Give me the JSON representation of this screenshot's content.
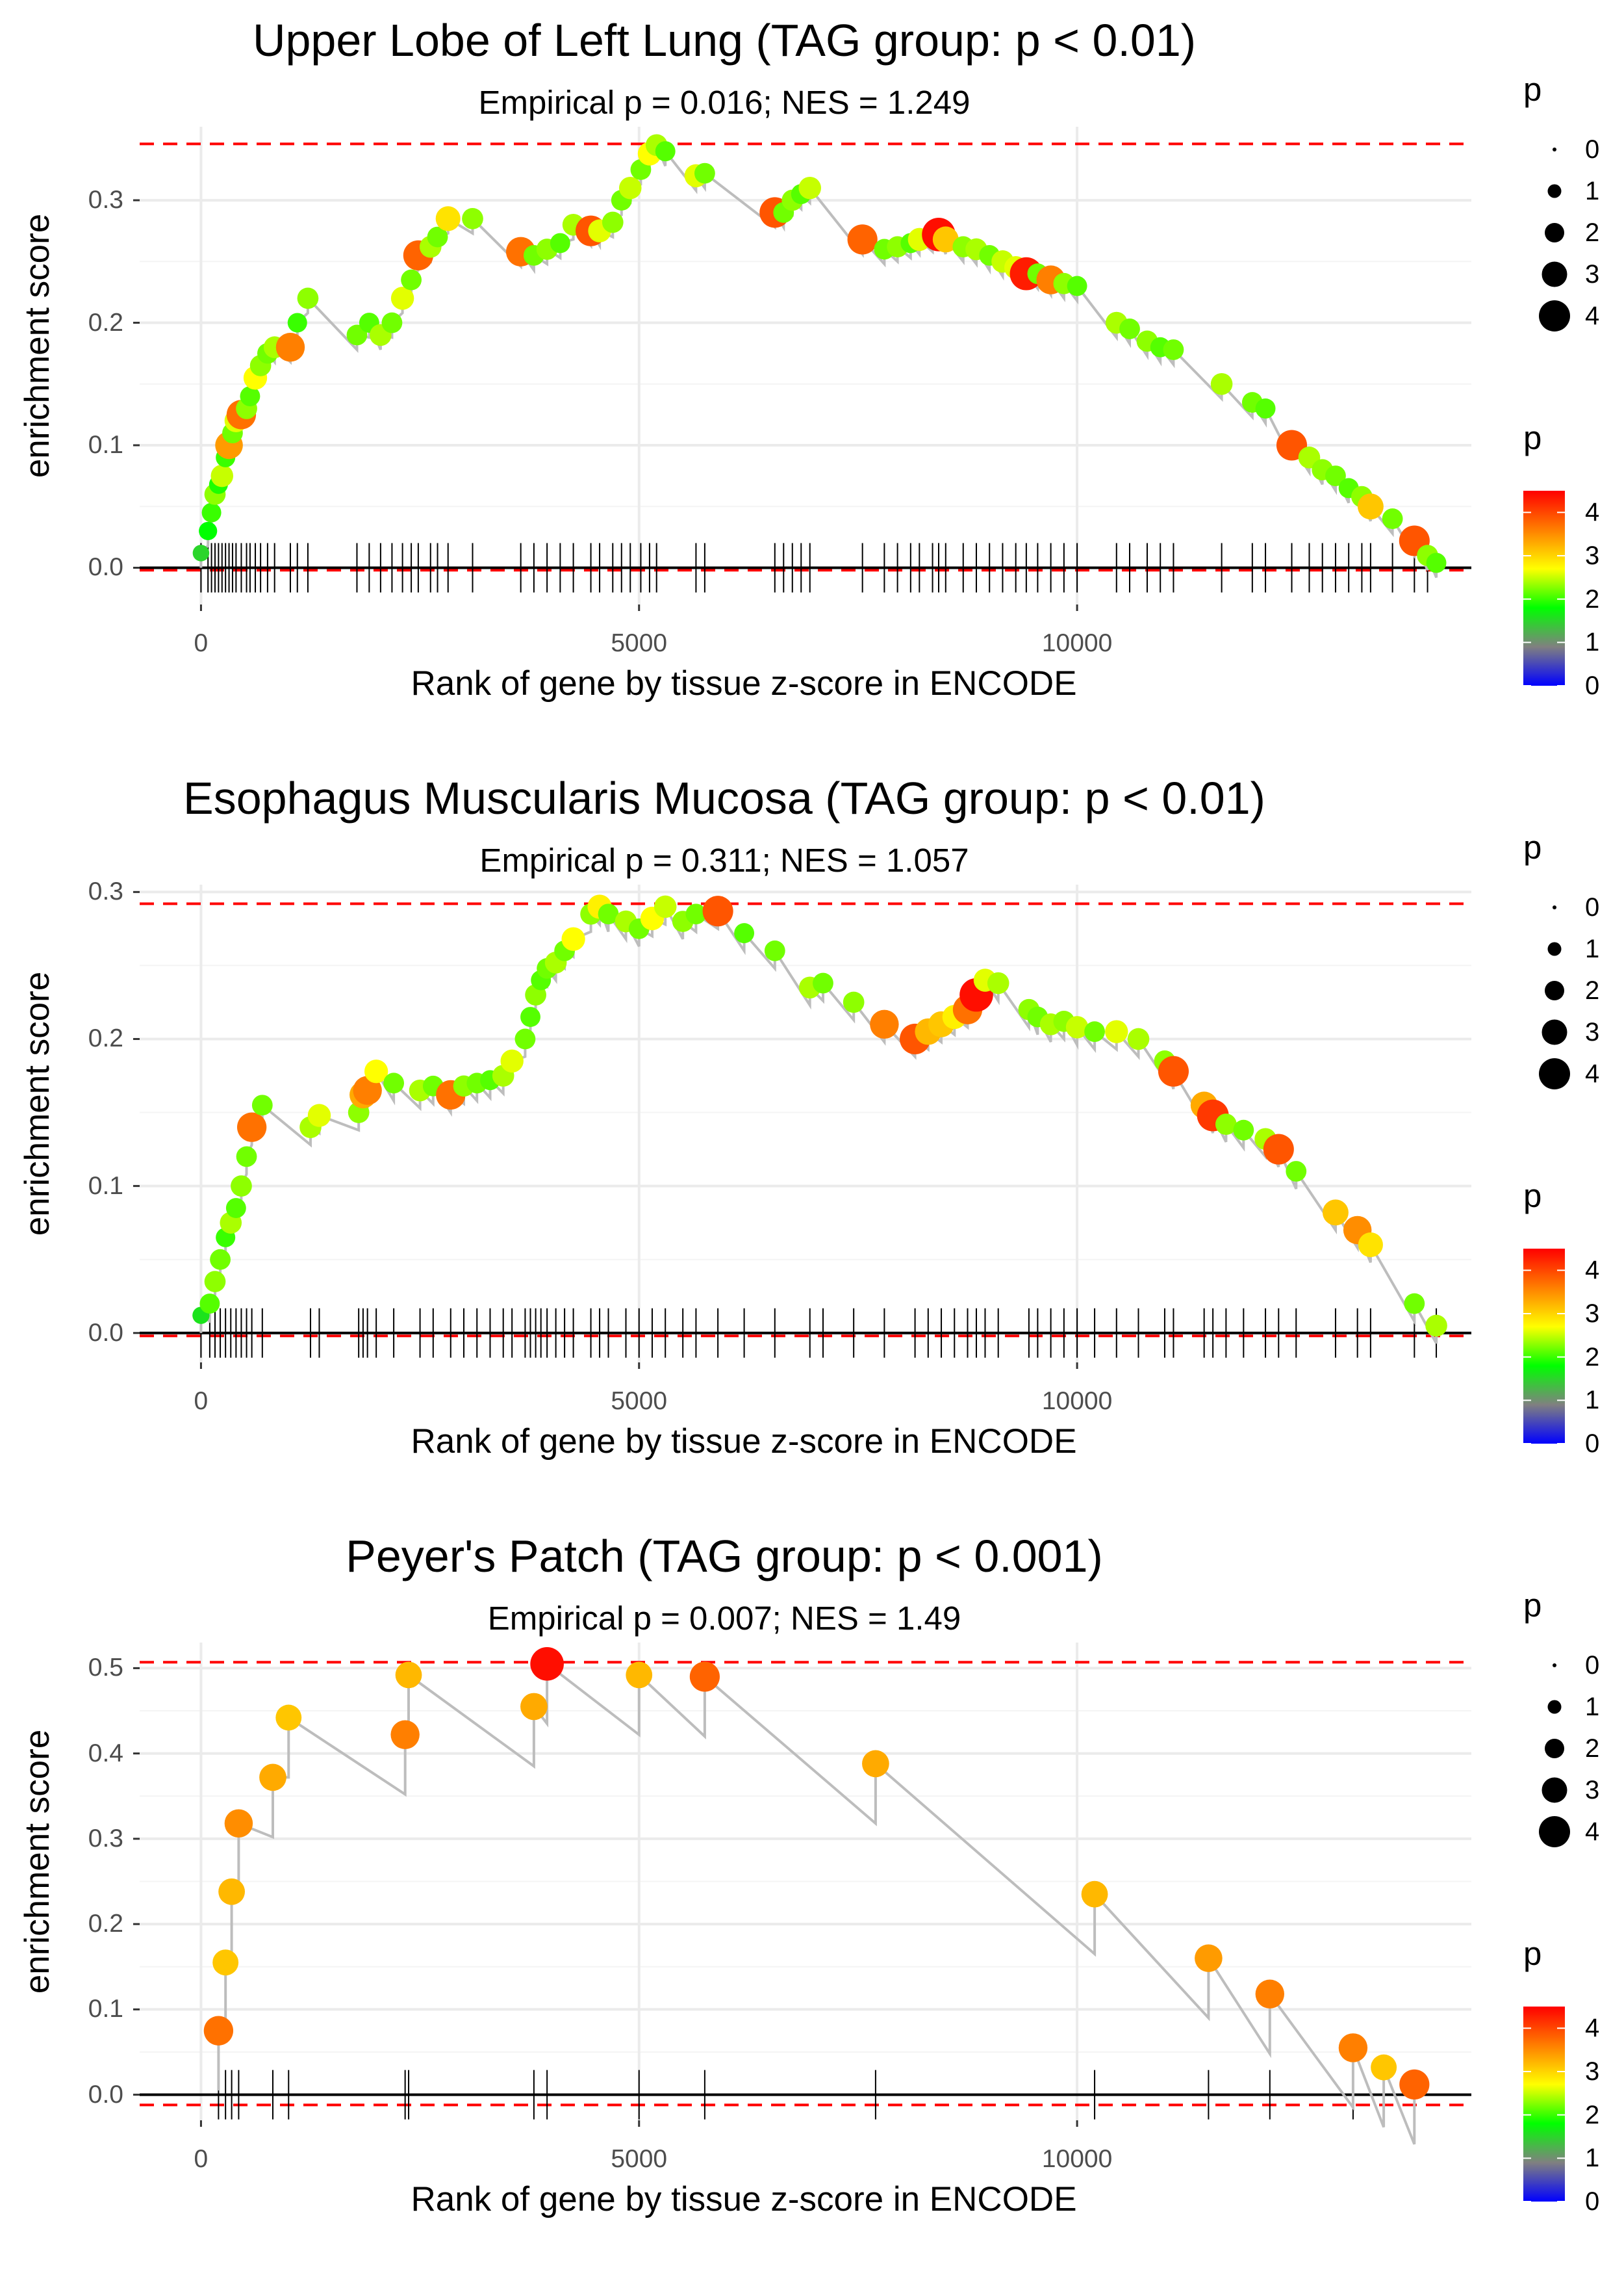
{
  "chart_data": [
    {
      "type": "scatter",
      "title": "Upper Lobe of Left Lung (TAG group: p < 0.01)",
      "subtitle": "Empirical p = 0.016; NES = 1.249",
      "xlabel": "Rank of gene by tissue z-score in ENCODE",
      "ylabel": "enrichment score",
      "xlim": [
        -700,
        14500
      ],
      "ylim": [
        -0.03,
        0.36
      ],
      "x_ticks": [
        {
          "value": 0,
          "label": "0"
        },
        {
          "value": 5000,
          "label": "5000"
        },
        {
          "value": 10000,
          "label": "10000"
        }
      ],
      "y_ticks": [
        {
          "value": 0.0,
          "label": "0.0"
        },
        {
          "value": 0.1,
          "label": "0.1"
        },
        {
          "value": 0.2,
          "label": "0.2"
        },
        {
          "value": 0.3,
          "label": "0.3"
        }
      ],
      "max_line": 0.346,
      "min_line": -0.002,
      "points": [
        [
          0,
          0.012,
          1.5
        ],
        [
          80,
          0.03,
          1.8
        ],
        [
          120,
          0.045,
          2
        ],
        [
          160,
          0.06,
          2.3
        ],
        [
          200,
          0.068,
          1.9
        ],
        [
          240,
          0.075,
          2.5
        ],
        [
          280,
          0.09,
          2
        ],
        [
          320,
          0.1,
          3.4
        ],
        [
          360,
          0.11,
          2.2
        ],
        [
          400,
          0.12,
          2.6
        ],
        [
          460,
          0.125,
          3.7
        ],
        [
          520,
          0.13,
          2.3
        ],
        [
          560,
          0.14,
          2.1
        ],
        [
          620,
          0.155,
          2.7
        ],
        [
          680,
          0.165,
          2.3
        ],
        [
          760,
          0.175,
          2.2
        ],
        [
          840,
          0.18,
          2.4
        ],
        [
          1020,
          0.18,
          3.6
        ],
        [
          1100,
          0.2,
          2
        ],
        [
          1220,
          0.22,
          2.3
        ],
        [
          1780,
          0.19,
          2.2
        ],
        [
          1920,
          0.2,
          2.1
        ],
        [
          2050,
          0.19,
          2.4
        ],
        [
          2180,
          0.2,
          2.2
        ],
        [
          2300,
          0.22,
          2.6
        ],
        [
          2400,
          0.235,
          2.2
        ],
        [
          2480,
          0.255,
          3.8
        ],
        [
          2620,
          0.262,
          2.4
        ],
        [
          2700,
          0.27,
          2.2
        ],
        [
          2820,
          0.285,
          2.9
        ],
        [
          3100,
          0.285,
          2.3
        ],
        [
          3650,
          0.258,
          3.7
        ],
        [
          3800,
          0.255,
          2.2
        ],
        [
          3950,
          0.26,
          2.3
        ],
        [
          4100,
          0.265,
          2.1
        ],
        [
          4250,
          0.28,
          2.4
        ],
        [
          4450,
          0.275,
          3.9
        ],
        [
          4550,
          0.275,
          2.6
        ],
        [
          4700,
          0.282,
          2.3
        ],
        [
          4800,
          0.3,
          2.2
        ],
        [
          4900,
          0.31,
          2.5
        ],
        [
          5020,
          0.325,
          2.2
        ],
        [
          5120,
          0.338,
          2.7
        ],
        [
          5200,
          0.345,
          2.4
        ],
        [
          5300,
          0.34,
          2.1
        ],
        [
          5650,
          0.32,
          2.6
        ],
        [
          5750,
          0.322,
          2.2
        ],
        [
          6550,
          0.29,
          3.9
        ],
        [
          6650,
          0.29,
          2.2
        ],
        [
          6750,
          0.3,
          2.3
        ],
        [
          6850,
          0.305,
          2.1
        ],
        [
          6950,
          0.31,
          2.5
        ],
        [
          7550,
          0.268,
          3.8
        ],
        [
          7800,
          0.26,
          2.2
        ],
        [
          7950,
          0.262,
          2.3
        ],
        [
          8100,
          0.265,
          2.1
        ],
        [
          8200,
          0.268,
          2.6
        ],
        [
          8350,
          0.27,
          2.2
        ],
        [
          8420,
          0.272,
          4.4
        ],
        [
          8500,
          0.268,
          3.1
        ],
        [
          8700,
          0.262,
          2.3
        ],
        [
          8850,
          0.26,
          2.4
        ],
        [
          9000,
          0.255,
          2.2
        ],
        [
          9150,
          0.25,
          2.5
        ],
        [
          9300,
          0.245,
          2.6
        ],
        [
          9420,
          0.24,
          4.3
        ],
        [
          9550,
          0.24,
          2.2
        ],
        [
          9700,
          0.235,
          3.6
        ],
        [
          9850,
          0.232,
          2.3
        ],
        [
          10000,
          0.23,
          2.1
        ],
        [
          10450,
          0.2,
          2.4
        ],
        [
          10600,
          0.195,
          2.2
        ],
        [
          10800,
          0.185,
          2.3
        ],
        [
          10950,
          0.18,
          2.1
        ],
        [
          11100,
          0.178,
          2.2
        ],
        [
          11650,
          0.15,
          2.4
        ],
        [
          12000,
          0.135,
          2.2
        ],
        [
          12150,
          0.13,
          2.1
        ],
        [
          12450,
          0.1,
          3.9
        ],
        [
          12650,
          0.09,
          2.4
        ],
        [
          12800,
          0.08,
          2.3
        ],
        [
          12950,
          0.075,
          2.2
        ],
        [
          13100,
          0.065,
          2.1
        ],
        [
          13250,
          0.058,
          2.3
        ],
        [
          13350,
          0.05,
          3.1
        ],
        [
          13600,
          0.04,
          2.2
        ],
        [
          13850,
          0.022,
          3.9
        ],
        [
          14000,
          0.01,
          2.3
        ],
        [
          14100,
          0.004,
          2.1
        ]
      ],
      "gene_ticks": [
        0,
        80,
        120,
        160,
        200,
        240,
        280,
        320,
        360,
        400,
        460,
        520,
        560,
        620,
        680,
        760,
        840,
        1020,
        1100,
        1220,
        1780,
        1920,
        2050,
        2180,
        2300,
        2400,
        2480,
        2620,
        2700,
        2820,
        3100,
        3650,
        3800,
        3950,
        4100,
        4250,
        4450,
        4550,
        4700,
        4800,
        4900,
        5020,
        5120,
        5200,
        5650,
        5750,
        6550,
        6650,
        6750,
        6850,
        6950,
        7550,
        7800,
        7950,
        8100,
        8200,
        8350,
        8420,
        8500,
        8700,
        8850,
        9000,
        9150,
        9300,
        9420,
        9550,
        9700,
        9850,
        10000,
        10450,
        10600,
        10800,
        10950,
        11100,
        11650,
        12000,
        12150,
        12450,
        12650,
        12800,
        12950,
        13100,
        13250,
        13350,
        13600,
        13850,
        14000
      ]
    },
    {
      "type": "scatter",
      "title": "Esophagus Muscularis Mucosa (TAG group: p < 0.01)",
      "subtitle": "Empirical p = 0.311; NES = 1.057",
      "xlabel": "Rank of gene by tissue z-score in ENCODE",
      "ylabel": "enrichment score",
      "xlim": [
        -700,
        14500
      ],
      "ylim": [
        -0.02,
        0.305
      ],
      "x_ticks": [
        {
          "value": 0,
          "label": "0"
        },
        {
          "value": 5000,
          "label": "5000"
        },
        {
          "value": 10000,
          "label": "10000"
        }
      ],
      "y_ticks": [
        {
          "value": 0.0,
          "label": "0.0"
        },
        {
          "value": 0.1,
          "label": "0.1"
        },
        {
          "value": 0.2,
          "label": "0.2"
        },
        {
          "value": 0.3,
          "label": "0.3"
        }
      ],
      "max_line": 0.292,
      "min_line": -0.002,
      "points": [
        [
          0,
          0.012,
          1.6
        ],
        [
          100,
          0.02,
          2.1
        ],
        [
          160,
          0.035,
          2.3
        ],
        [
          220,
          0.05,
          2.2
        ],
        [
          280,
          0.065,
          2
        ],
        [
          340,
          0.075,
          2.4
        ],
        [
          400,
          0.085,
          2.1
        ],
        [
          460,
          0.1,
          2.3
        ],
        [
          520,
          0.12,
          2.2
        ],
        [
          580,
          0.14,
          3.7
        ],
        [
          700,
          0.155,
          2.2
        ],
        [
          1250,
          0.14,
          2.4
        ],
        [
          1350,
          0.148,
          2.6
        ],
        [
          1800,
          0.15,
          2.3
        ],
        [
          1850,
          0.162,
          3.3
        ],
        [
          1900,
          0.165,
          3.6
        ],
        [
          2000,
          0.178,
          2.7
        ],
        [
          2200,
          0.17,
          2.2
        ],
        [
          2500,
          0.165,
          2.4
        ],
        [
          2650,
          0.168,
          2.2
        ],
        [
          2850,
          0.162,
          3.7
        ],
        [
          3000,
          0.168,
          2.3
        ],
        [
          3150,
          0.17,
          2.2
        ],
        [
          3300,
          0.172,
          2.1
        ],
        [
          3450,
          0.175,
          2.4
        ],
        [
          3550,
          0.185,
          2.6
        ],
        [
          3700,
          0.2,
          2.2
        ],
        [
          3760,
          0.215,
          2.1
        ],
        [
          3820,
          0.23,
          2.3
        ],
        [
          3880,
          0.24,
          2.1
        ],
        [
          3950,
          0.248,
          2.2
        ],
        [
          4050,
          0.252,
          2.4
        ],
        [
          4150,
          0.26,
          2.2
        ],
        [
          4250,
          0.268,
          2.7
        ],
        [
          4450,
          0.285,
          2.3
        ],
        [
          4550,
          0.29,
          2.8
        ],
        [
          4650,
          0.285,
          2.2
        ],
        [
          4850,
          0.28,
          2.4
        ],
        [
          5000,
          0.275,
          2.2
        ],
        [
          5150,
          0.282,
          2.7
        ],
        [
          5300,
          0.29,
          2.5
        ],
        [
          5500,
          0.28,
          2.3
        ],
        [
          5650,
          0.285,
          2.2
        ],
        [
          5900,
          0.287,
          3.9
        ],
        [
          6200,
          0.272,
          2.1
        ],
        [
          6550,
          0.26,
          2.2
        ],
        [
          6950,
          0.235,
          2.4
        ],
        [
          7100,
          0.238,
          2.2
        ],
        [
          7450,
          0.225,
          2.3
        ],
        [
          7800,
          0.21,
          3.6
        ],
        [
          8150,
          0.2,
          3.9
        ],
        [
          8300,
          0.205,
          3.2
        ],
        [
          8450,
          0.21,
          3.1
        ],
        [
          8600,
          0.215,
          2.8
        ],
        [
          8750,
          0.22,
          3.7
        ],
        [
          8850,
          0.23,
          4.4
        ],
        [
          8950,
          0.24,
          2.6
        ],
        [
          9100,
          0.238,
          2.4
        ],
        [
          9450,
          0.22,
          2.3
        ],
        [
          9550,
          0.215,
          2.2
        ],
        [
          9700,
          0.21,
          2.4
        ],
        [
          9850,
          0.212,
          2.3
        ],
        [
          10000,
          0.208,
          2.5
        ],
        [
          10200,
          0.205,
          2.2
        ],
        [
          10450,
          0.205,
          2.6
        ],
        [
          10700,
          0.2,
          2.4
        ],
        [
          11000,
          0.185,
          2.3
        ],
        [
          11100,
          0.178,
          3.9
        ],
        [
          11450,
          0.155,
          3.3
        ],
        [
          11550,
          0.148,
          4.1
        ],
        [
          11700,
          0.142,
          2.3
        ],
        [
          11900,
          0.138,
          2.2
        ],
        [
          12150,
          0.132,
          2.4
        ],
        [
          12300,
          0.125,
          3.9
        ],
        [
          12500,
          0.11,
          2.2
        ],
        [
          12950,
          0.082,
          3.1
        ],
        [
          13200,
          0.07,
          3.5
        ],
        [
          13350,
          0.06,
          2.9
        ],
        [
          13850,
          0.02,
          2.2
        ],
        [
          14100,
          0.005,
          2.4
        ]
      ],
      "gene_ticks": [
        0,
        100,
        160,
        220,
        280,
        340,
        400,
        460,
        520,
        580,
        700,
        1250,
        1350,
        1800,
        1850,
        1900,
        2000,
        2200,
        2500,
        2650,
        2850,
        3000,
        3150,
        3300,
        3450,
        3550,
        3700,
        3760,
        3820,
        3880,
        3950,
        4050,
        4150,
        4250,
        4450,
        4550,
        4650,
        4850,
        5000,
        5150,
        5300,
        5500,
        5650,
        5900,
        6200,
        6550,
        6950,
        7100,
        7450,
        7800,
        8150,
        8300,
        8450,
        8600,
        8750,
        8850,
        8950,
        9100,
        9450,
        9550,
        9700,
        9850,
        10000,
        10200,
        10450,
        10700,
        11000,
        11100,
        11450,
        11550,
        11700,
        11900,
        12150,
        12300,
        12500,
        12950,
        13200,
        13350,
        13850,
        14100
      ]
    },
    {
      "type": "scatter",
      "title": "Peyer's Patch (TAG group: p < 0.001)",
      "subtitle": "Empirical p = 0.007; NES = 1.49",
      "xlabel": "Rank of gene by tissue z-score in ENCODE",
      "ylabel": "enrichment score",
      "xlim": [
        -700,
        14500
      ],
      "ylim": [
        -0.03,
        0.53
      ],
      "x_ticks": [
        {
          "value": 0,
          "label": "0"
        },
        {
          "value": 5000,
          "label": "5000"
        },
        {
          "value": 10000,
          "label": "10000"
        }
      ],
      "y_ticks": [
        {
          "value": 0.0,
          "label": "0.0"
        },
        {
          "value": 0.1,
          "label": "0.1"
        },
        {
          "value": 0.2,
          "label": "0.2"
        },
        {
          "value": 0.3,
          "label": "0.3"
        },
        {
          "value": 0.4,
          "label": "0.4"
        },
        {
          "value": 0.5,
          "label": "0.5"
        }
      ],
      "max_line": 0.507,
      "min_line": -0.012,
      "points": [
        [
          200,
          0.075,
          3.7
        ],
        [
          280,
          0.155,
          3.1
        ],
        [
          350,
          0.238,
          3.2
        ],
        [
          430,
          0.318,
          3.5
        ],
        [
          820,
          0.372,
          3.3
        ],
        [
          1000,
          0.442,
          3.1
        ],
        [
          2330,
          0.422,
          3.6
        ],
        [
          2370,
          0.492,
          3.2
        ],
        [
          3800,
          0.455,
          3.3
        ],
        [
          3950,
          0.505,
          4.4
        ],
        [
          5000,
          0.492,
          3.2
        ],
        [
          5750,
          0.49,
          3.8
        ],
        [
          7700,
          0.388,
          3.3
        ],
        [
          10200,
          0.235,
          3.2
        ],
        [
          11500,
          0.16,
          3.4
        ],
        [
          12200,
          0.118,
          3.6
        ],
        [
          13150,
          0.055,
          3.6
        ],
        [
          13500,
          0.032,
          3.1
        ],
        [
          13850,
          0.012,
          3.8
        ]
      ],
      "gene_ticks": [
        200,
        280,
        350,
        430,
        820,
        1000,
        2330,
        2370,
        3800,
        3950,
        5000,
        5750,
        7700,
        10200,
        11500,
        12200,
        13150,
        13500,
        13850
      ]
    }
  ],
  "legend": {
    "size_title": "p",
    "size_levels": [
      "0",
      "1",
      "2",
      "3",
      "4"
    ],
    "color_title": "p",
    "color_ticks": [
      "4",
      "3",
      "2",
      "1",
      "0"
    ],
    "color_max": 4.5,
    "colors": [
      "#0000ff",
      "#808080",
      "#00ff00",
      "#ffff00",
      "#ff7f00",
      "#ff0000"
    ]
  }
}
